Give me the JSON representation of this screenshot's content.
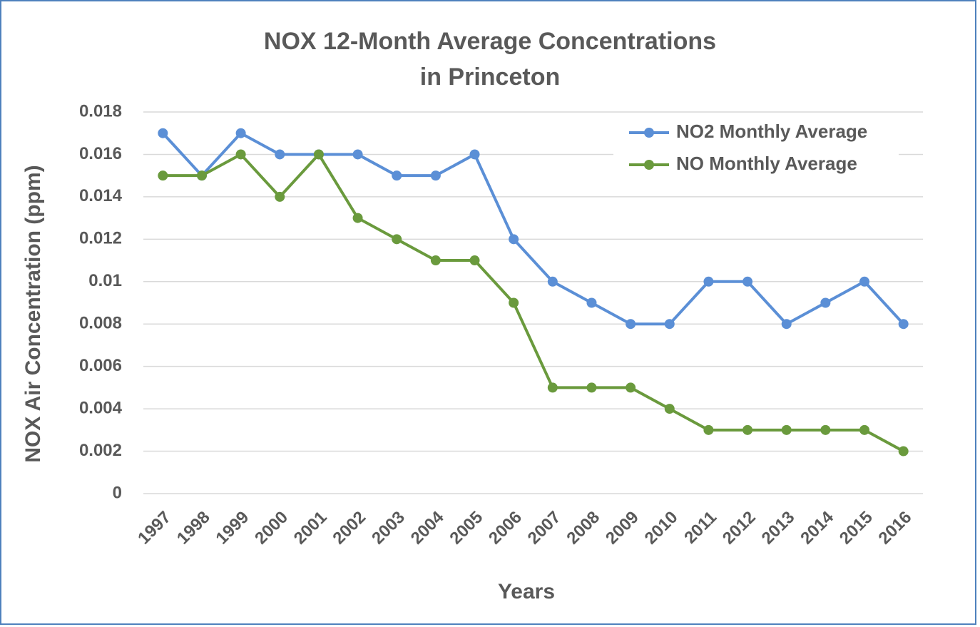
{
  "chart_data": {
    "type": "line",
    "title": [
      "NOX 12-Month Average Concentrations",
      "in Princeton"
    ],
    "x_label": "Years",
    "y_label": "NOX Air Concentration (ppm)",
    "categories": [
      "1997",
      "1998",
      "1999",
      "2000",
      "2001",
      "2002",
      "2003",
      "2004",
      "2005",
      "2006",
      "2007",
      "2008",
      "2009",
      "2010",
      "2011",
      "2012",
      "2013",
      "2014",
      "2015",
      "2016"
    ],
    "series": [
      {
        "name": "NO2 Monthly Average",
        "color": "#5b8fd6",
        "values": [
          0.017,
          0.015,
          0.017,
          0.016,
          0.016,
          0.016,
          0.015,
          0.015,
          0.016,
          0.012,
          0.01,
          0.009,
          0.008,
          0.008,
          0.01,
          0.01,
          0.008,
          0.009,
          0.01,
          0.008
        ]
      },
      {
        "name": "NO Monthly Average",
        "color": "#6a9a3d",
        "values": [
          0.015,
          0.015,
          0.016,
          0.014,
          0.016,
          0.013,
          0.012,
          0.011,
          0.011,
          0.009,
          0.005,
          0.005,
          0.005,
          0.004,
          0.003,
          0.003,
          0.003,
          0.003,
          0.003,
          0.002
        ]
      }
    ],
    "ylim": [
      0,
      0.018
    ],
    "yticks": [
      0,
      0.002,
      0.004,
      0.006,
      0.008,
      0.01,
      0.012,
      0.014,
      0.016,
      0.018
    ],
    "grid": true,
    "legend": "upper right"
  }
}
